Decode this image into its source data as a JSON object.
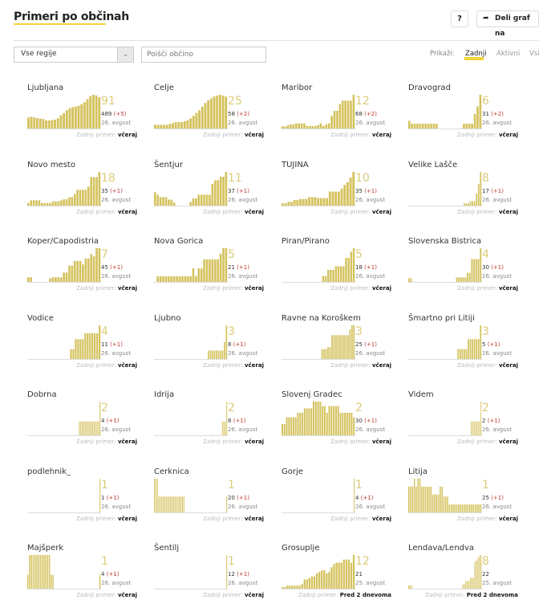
{
  "header": {
    "title": "Primeri po občinah",
    "help_label": "?",
    "share_icon": "share-arrow-icon",
    "share_label": "Deli graf na"
  },
  "controls": {
    "region_value": "Vse regije",
    "region_arrow": "chevron-down-icon",
    "search_placeholder": "Poišči občino",
    "show_label": "Prikaži:",
    "filters": [
      "Zadnji",
      "Aktivni",
      "Vsi"
    ],
    "active_filter": "Zadnji"
  },
  "colors": {
    "bar": "#d4c25e",
    "accent": "#f3d33a",
    "delta": "#c0392b",
    "big_number": "#dccb7a"
  },
  "last_case_label": "Zadnji primer:",
  "municipalities": [
    {
      "name": "Ljubljana",
      "active": "91",
      "total": "489",
      "delta": "(+5)",
      "date": "26. avgust",
      "last": "včeraj",
      "bars": [
        30,
        32,
        30,
        28,
        27,
        26,
        22,
        22,
        23,
        24,
        28,
        36,
        42,
        50,
        55,
        58,
        60,
        62,
        66,
        72,
        80,
        88,
        92,
        90,
        85
      ]
    },
    {
      "name": "Celje",
      "active": "25",
      "total": "58",
      "delta": "(+2)",
      "date": "26. avgust",
      "last": "včeraj",
      "bars": [
        8,
        8,
        8,
        8,
        8,
        10,
        12,
        14,
        14,
        14,
        16,
        18,
        22,
        28,
        34,
        40,
        48,
        56,
        62,
        66,
        70,
        72,
        74,
        72,
        70
      ]
    },
    {
      "name": "Maribor",
      "active": "12",
      "total": "68",
      "delta": "(+2)",
      "date": "26. avgust",
      "last": "včeraj",
      "bars": [
        5,
        5,
        8,
        10,
        10,
        12,
        12,
        12,
        12,
        6,
        6,
        6,
        6,
        8,
        12,
        6,
        10,
        12,
        30,
        42,
        42,
        58,
        66,
        66,
        66,
        66,
        80
      ]
    },
    {
      "name": "Dravograd",
      "active": "6",
      "total": "31",
      "delta": "(+2)",
      "date": "26. avgust",
      "last": "včeraj",
      "bars": [
        16,
        10,
        10,
        10,
        10,
        10,
        10,
        10,
        10,
        10,
        10,
        0,
        0,
        0,
        0,
        0,
        0,
        0,
        0,
        0,
        10,
        10,
        10,
        10,
        30,
        46,
        70
      ]
    },
    {
      "name": "Novo mesto",
      "active": "18",
      "total": "35",
      "delta": "(+1)",
      "date": "26. avgust",
      "last": "včeraj",
      "bars": [
        5,
        10,
        10,
        10,
        10,
        5,
        5,
        5,
        5,
        8,
        8,
        8,
        10,
        12,
        12,
        16,
        16,
        22,
        30,
        30,
        30,
        30,
        36,
        54,
        54,
        54,
        64
      ]
    },
    {
      "name": "Šentjur",
      "active": "11",
      "total": "37",
      "delta": "(+1)",
      "date": "26. avgust",
      "last": "včeraj",
      "bars": [
        22,
        18,
        14,
        14,
        14,
        10,
        10,
        5,
        0,
        0,
        0,
        0,
        0,
        6,
        12,
        12,
        18,
        18,
        18,
        18,
        18,
        36,
        42,
        42,
        48,
        48,
        56
      ]
    },
    {
      "name": "TUJINA",
      "active": "10",
      "total": "35",
      "delta": "(+1)",
      "date": "26. avgust",
      "last": "včeraj",
      "bars": [
        5,
        5,
        8,
        8,
        12,
        12,
        14,
        14,
        14,
        18,
        18,
        18,
        16,
        16,
        16,
        16,
        30,
        30,
        30,
        30,
        36,
        44,
        50,
        60,
        72
      ]
    },
    {
      "name": "Velike Lašče",
      "active": "8",
      "total": "17",
      "delta": "(+1)",
      "date": "26. avgust",
      "last": "včeraj",
      "bars": [
        0,
        0,
        0,
        0,
        0,
        0,
        0,
        0,
        0,
        0,
        0,
        0,
        0,
        0,
        0,
        0,
        0,
        0,
        0,
        0,
        0,
        0,
        0,
        0,
        0,
        0,
        0,
        5,
        5,
        5,
        10,
        10,
        10,
        28,
        50,
        78
      ]
    },
    {
      "name": "Koper/Capodistria",
      "active": "7",
      "total": "45",
      "delta": "(+1)",
      "date": "26. avgust",
      "last": "včeraj",
      "bars": [
        8,
        8,
        0,
        0,
        0,
        0,
        0,
        0,
        6,
        8,
        8,
        8,
        8,
        16,
        16,
        28,
        28,
        36,
        36,
        36,
        30,
        40,
        40,
        48,
        44,
        58,
        58
      ]
    },
    {
      "name": "Nova Gorica",
      "active": "5",
      "total": "21",
      "delta": "(+1)",
      "date": "26. avgust",
      "last": "včeraj",
      "bars": [
        0,
        10,
        10,
        10,
        10,
        10,
        10,
        10,
        10,
        10,
        10,
        10,
        10,
        10,
        24,
        10,
        24,
        24,
        40,
        40,
        40,
        40,
        40,
        40,
        50,
        60,
        60
      ]
    },
    {
      "name": "Piran/Pirano",
      "active": "5",
      "total": "18",
      "delta": "(+1)",
      "date": "26. avgust",
      "last": "včeraj",
      "bars": [
        0,
        0,
        0,
        0,
        0,
        0,
        0,
        0,
        0,
        0,
        0,
        0,
        0,
        0,
        0,
        0,
        10,
        10,
        20,
        20,
        20,
        26,
        26,
        26,
        26,
        40,
        40,
        50,
        56
      ]
    },
    {
      "name": "Slovenska Bistrica",
      "active": "4",
      "total": "30",
      "delta": "(+1)",
      "date": "26. avgust",
      "last": "včeraj",
      "bars": [
        8,
        8,
        0,
        0,
        0,
        0,
        0,
        0,
        0,
        0,
        0,
        0,
        0,
        0,
        0,
        0,
        0,
        0,
        0,
        0,
        0,
        0,
        10,
        10,
        10,
        10,
        10,
        20,
        20,
        50,
        50,
        50,
        50,
        74
      ]
    },
    {
      "name": "Vodice",
      "active": "4",
      "total": "11",
      "delta": "(+1)",
      "date": "26. avgust",
      "last": "včeraj",
      "bars": [
        0,
        0,
        0,
        0,
        0,
        0,
        0,
        0,
        0,
        0,
        0,
        0,
        0,
        0,
        0,
        0,
        0,
        0,
        10,
        10,
        20,
        20,
        20,
        20,
        26,
        26,
        26,
        26,
        26,
        26,
        34
      ]
    },
    {
      "name": "Ljubno",
      "active": "3",
      "total": "8",
      "delta": "(+1)",
      "date": "26. avgust",
      "last": "včeraj",
      "bars": [
        0,
        0,
        0,
        0,
        0,
        0,
        0,
        0,
        0,
        0,
        0,
        0,
        0,
        0,
        0,
        0,
        0,
        0,
        0,
        0,
        0,
        0,
        0,
        0,
        0,
        0,
        0,
        10,
        10,
        10,
        10,
        10,
        10,
        10,
        10,
        20,
        40
      ]
    },
    {
      "name": "Ravne na Koroškem",
      "active": "3",
      "total": "25",
      "delta": "(+1)",
      "date": "26. avgust",
      "last": "včeraj",
      "bars": [
        0,
        0,
        0,
        0,
        0,
        0,
        0,
        0,
        0,
        0,
        0,
        0,
        0,
        0,
        0,
        0,
        0,
        0,
        0,
        0,
        10,
        10,
        10,
        12,
        12,
        24,
        24,
        24,
        24,
        24,
        24,
        24,
        24,
        24,
        30,
        34,
        34
      ]
    },
    {
      "name": "Šmartno pri Litiji",
      "active": "3",
      "total": "5",
      "delta": "(+1)",
      "date": "26. avgust",
      "last": "včeraj",
      "bars": [
        0,
        0,
        0,
        0,
        0,
        0,
        0,
        0,
        0,
        0,
        0,
        0,
        0,
        0,
        0,
        0,
        0,
        0,
        0,
        0,
        0,
        0,
        0,
        0,
        10,
        10,
        10,
        10,
        10,
        20,
        20,
        20,
        20,
        20,
        20,
        34
      ]
    },
    {
      "name": "Dobrna",
      "active": "2",
      "total": "4",
      "delta": "(+1)",
      "date": "26. avgust",
      "last": "včeraj",
      "bars": [
        0,
        0,
        0,
        0,
        0,
        0,
        0,
        0,
        0,
        0,
        0,
        0,
        0,
        0,
        0,
        0,
        0,
        0,
        0,
        0,
        0,
        0,
        0,
        0,
        0,
        0,
        0,
        0,
        0,
        0,
        0,
        0,
        0,
        0,
        0,
        14,
        14,
        14,
        14,
        14,
        14,
        14,
        14,
        14,
        14,
        14,
        14,
        14,
        14,
        34
      ]
    },
    {
      "name": "Idrija",
      "active": "2",
      "total": "8",
      "delta": "(+1)",
      "date": "26. avgust",
      "last": "včeraj",
      "bars": [
        0,
        0,
        0,
        0,
        0,
        0,
        0,
        0,
        0,
        0,
        0,
        0,
        0,
        0,
        0,
        0,
        0,
        0,
        0,
        0,
        0,
        0,
        0,
        0,
        0,
        0,
        0,
        0,
        0,
        0,
        0,
        0,
        0,
        0,
        0,
        0,
        0,
        0,
        0,
        0,
        0,
        0,
        0,
        0,
        0,
        0,
        0,
        14,
        14,
        14,
        34
      ]
    },
    {
      "name": "Slovenj Gradec",
      "active": "2",
      "total": "30",
      "delta": "(+1)",
      "date": "26. avgust",
      "last": "včeraj",
      "bars": [
        10,
        10,
        16,
        16,
        16,
        16,
        16,
        20,
        20,
        20,
        24,
        24,
        24,
        24,
        30,
        30,
        30,
        30,
        26,
        26,
        20,
        26,
        26,
        26,
        26,
        26,
        20,
        20,
        20,
        20,
        20,
        20,
        16
      ]
    },
    {
      "name": "Videm",
      "active": "2",
      "total": "2",
      "delta": "(+1)",
      "date": "26. avgust",
      "last": "včeraj",
      "bars": [
        0,
        0,
        0,
        0,
        0,
        0,
        0,
        0,
        0,
        0,
        0,
        0,
        0,
        0,
        0,
        0,
        0,
        0,
        0,
        0,
        0,
        0,
        0,
        0,
        0,
        0,
        0,
        0,
        0,
        0,
        0,
        0,
        0,
        0,
        0,
        0,
        0,
        0,
        0,
        0,
        0,
        0,
        0,
        0,
        0,
        14,
        14,
        14,
        14,
        14,
        14,
        14,
        34
      ]
    },
    {
      "name": "podlehnik_",
      "active": "1",
      "total": "1",
      "delta": "(+1)",
      "date": "26. avgust",
      "last": "včeraj",
      "bars": [
        0,
        0,
        0,
        0,
        0,
        0,
        0,
        0,
        0,
        0,
        0,
        0,
        0,
        0,
        0,
        0,
        0,
        0,
        0,
        0,
        0,
        0,
        0,
        0,
        0,
        0,
        0,
        0,
        0,
        0,
        0,
        0,
        0,
        0,
        0,
        0,
        0,
        0,
        0,
        0,
        0,
        0,
        0,
        0,
        0,
        0,
        0,
        0,
        0,
        34
      ]
    },
    {
      "name": "Cerknica",
      "active": "1",
      "total": "20",
      "delta": "(+1)",
      "date": "26. avgust",
      "last": "včeraj",
      "bars": [
        34,
        34,
        34,
        16,
        16,
        16,
        16,
        16,
        16,
        16,
        16,
        16,
        16,
        16,
        16,
        16,
        16,
        16,
        16,
        16,
        16,
        0,
        0,
        0,
        0,
        0,
        0,
        0,
        0,
        0,
        0,
        0,
        0,
        0,
        0,
        0,
        0,
        0,
        0,
        0,
        0,
        0,
        0,
        0,
        0,
        0,
        0,
        0,
        0,
        16
      ]
    },
    {
      "name": "Gorje",
      "active": "1",
      "total": "4",
      "delta": "(+1)",
      "date": "26. avgust",
      "last": "včeraj",
      "bars": [
        0,
        0,
        0,
        0,
        0,
        0,
        0,
        0,
        0,
        0,
        0,
        0,
        0,
        0,
        0,
        0,
        0,
        0,
        0,
        0,
        0,
        0,
        0,
        0,
        0,
        0,
        0,
        0,
        0,
        0,
        0,
        0,
        0,
        0,
        0,
        0,
        0,
        0,
        0,
        0,
        0,
        0,
        0,
        0,
        0,
        0,
        0,
        0,
        0,
        34
      ]
    },
    {
      "name": "Litija",
      "active": "1",
      "total": "25",
      "delta": "(+1)",
      "date": "26. avgust",
      "last": "včeraj",
      "bars": [
        26,
        26,
        26,
        34,
        26,
        34,
        34,
        26,
        26,
        26,
        26,
        26,
        26,
        18,
        18,
        18,
        18,
        26,
        26,
        16,
        16,
        16,
        8,
        8,
        8,
        8,
        8,
        8,
        8,
        8,
        8,
        8,
        8,
        8,
        8,
        8,
        8,
        8,
        8,
        8
      ]
    },
    {
      "name": "Majšperk",
      "active": "1",
      "total": "4",
      "delta": "(+1)",
      "date": "26. avgust",
      "last": "včeraj",
      "bars": [
        14,
        34,
        34,
        34,
        34,
        34,
        34,
        34,
        34,
        34,
        34,
        34,
        34,
        14,
        14,
        0,
        0,
        0,
        0,
        0,
        0,
        0,
        0,
        0,
        0,
        0,
        0,
        0,
        0,
        0,
        0,
        0,
        0,
        0,
        0,
        0,
        0,
        0,
        0,
        0,
        14
      ]
    },
    {
      "name": "Šentilj",
      "active": "1",
      "total": "12",
      "delta": "(+1)",
      "date": "26. avgust",
      "last": "včeraj",
      "bars": [
        0,
        0,
        0,
        0,
        0,
        0,
        0,
        0,
        0,
        0,
        0,
        0,
        0,
        0,
        0,
        0,
        0,
        0,
        0,
        0,
        0,
        0,
        0,
        0,
        0,
        0,
        0,
        0,
        0,
        0,
        0,
        0,
        0,
        0,
        0,
        0,
        0,
        0,
        0,
        0,
        0,
        0,
        0,
        0,
        0,
        0,
        0,
        0,
        0,
        34
      ]
    },
    {
      "name": "Grosuplje",
      "active": "12",
      "total": "21",
      "delta": "",
      "date": "25. avgust",
      "last": "Pred 2 dnevoma",
      "bars": [
        2,
        2,
        4,
        4,
        4,
        4,
        4,
        4,
        6,
        12,
        12,
        14,
        16,
        16,
        20,
        22,
        24,
        24,
        20,
        22,
        28,
        32,
        34,
        34,
        34,
        38,
        38,
        38,
        34,
        44
      ]
    },
    {
      "name": "Lendava/Lendva",
      "active": "8",
      "total": "22",
      "delta": "",
      "date": "25. avgust",
      "last": "Pred 2 dnevoma",
      "bars": [
        6,
        6,
        6,
        0,
        0,
        0,
        0,
        0,
        0,
        0,
        0,
        0,
        0,
        0,
        0,
        0,
        0,
        0,
        0,
        0,
        0,
        0,
        0,
        0,
        0,
        0,
        0,
        0,
        0,
        0,
        0,
        0,
        0,
        0,
        0,
        0,
        8,
        8,
        14,
        14,
        14,
        20,
        20,
        20,
        50,
        52,
        56,
        60,
        62
      ]
    }
  ]
}
